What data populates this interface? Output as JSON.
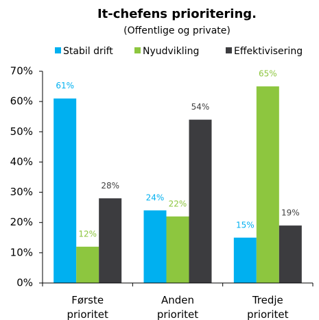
{
  "chart_data": {
    "type": "bar",
    "title": "It-chefens prioritering.",
    "subtitle": "(Offentlige og private)",
    "categories": [
      "Første prioritet",
      "Anden prioritet",
      "Tredje prioritet"
    ],
    "series": [
      {
        "name": "Stabil drift",
        "color": "#00b0f0",
        "label_color": "#00b0f0",
        "values": [
          61,
          24,
          15
        ],
        "value_labels": [
          "61%",
          "24%",
          "15%"
        ]
      },
      {
        "name": "Nyudvikling",
        "color": "#8dc63f",
        "label_color": "#8dc63f",
        "values": [
          12,
          22,
          65
        ],
        "value_labels": [
          "12%",
          "22%",
          "65%"
        ]
      },
      {
        "name": "Effektivisering",
        "color": "#3c3c3f",
        "label_color": "#404040",
        "values": [
          28,
          54,
          19
        ],
        "value_labels": [
          "28%",
          "54%",
          "19%"
        ]
      }
    ],
    "ylim": [
      0,
      70
    ],
    "yticks": [
      {
        "value": 0,
        "label": "0%"
      },
      {
        "value": 10,
        "label": "10%"
      },
      {
        "value": 20,
        "label": "20%"
      },
      {
        "value": 30,
        "label": "30%"
      },
      {
        "value": 40,
        "label": "40%"
      },
      {
        "value": 50,
        "label": "50%"
      },
      {
        "value": 60,
        "label": "60%"
      },
      {
        "value": 70,
        "label": "70%"
      }
    ],
    "grid": false,
    "legend": "top"
  }
}
